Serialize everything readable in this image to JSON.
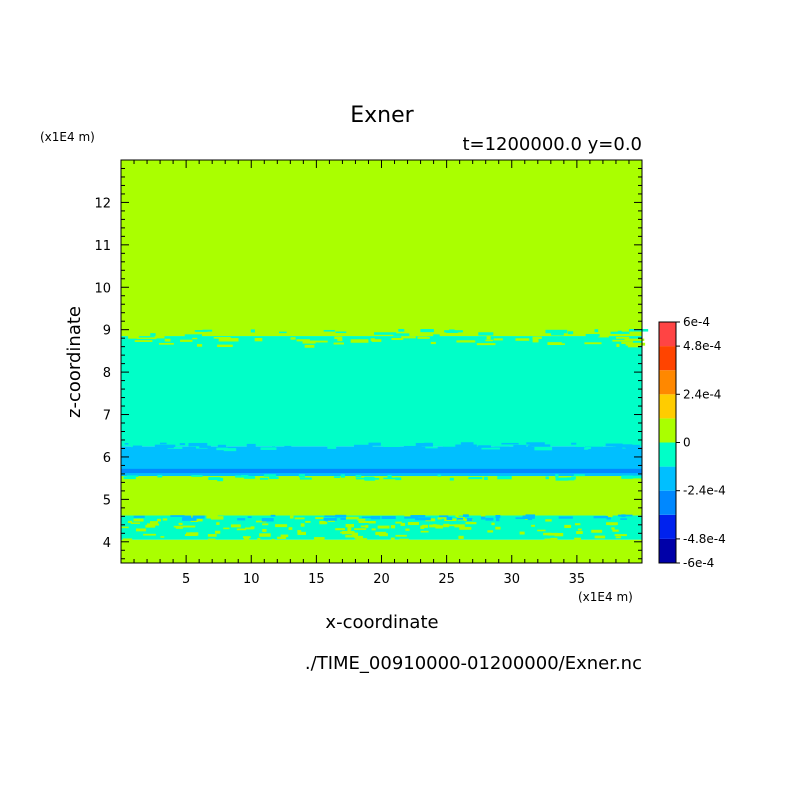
{
  "chart_data": {
    "type": "heatmap",
    "title": "Exner",
    "subtitle": "t=1200000.0 y=0.0",
    "xlabel": "x-coordinate",
    "ylabel": "z-coordinate",
    "x_unit": "(x1E4 m)",
    "y_unit": "(x1E4 m)",
    "source_file": "./TIME_00910000-01200000/Exner.nc",
    "xlim": [
      0,
      40
    ],
    "ylim": [
      3.5,
      13
    ],
    "x_ticks": [
      5,
      10,
      15,
      20,
      25,
      30,
      35
    ],
    "y_ticks": [
      4,
      5,
      6,
      7,
      8,
      9,
      10,
      11,
      12
    ],
    "colorbar": {
      "range": [
        -0.0006,
        0.0006
      ],
      "tick_values": [
        0.0006,
        0.00048,
        0.00024,
        0,
        -0.00024,
        -0.00048,
        -0.0006
      ],
      "tick_labels": [
        "6e-4",
        "4.8e-4",
        "2.4e-4",
        "0",
        "-2.4e-4",
        "-4.8e-4",
        "-6e-4"
      ],
      "levels": [
        {
          "lo": -0.0006,
          "hi": -0.00048,
          "color": "#0000a8"
        },
        {
          "lo": -0.00048,
          "hi": -0.00036,
          "color": "#0022ee"
        },
        {
          "lo": -0.00036,
          "hi": -0.00024,
          "color": "#0088ff"
        },
        {
          "lo": -0.00024,
          "hi": -0.00012,
          "color": "#00bfff"
        },
        {
          "lo": -0.00012,
          "hi": 0,
          "color": "#00ffc8"
        },
        {
          "lo": 0,
          "hi": 0.00012,
          "color": "#aaff00"
        },
        {
          "lo": 0.00012,
          "hi": 0.00024,
          "color": "#ffcc00"
        },
        {
          "lo": 0.00024,
          "hi": 0.00036,
          "color": "#ff8800"
        },
        {
          "lo": 0.00036,
          "hi": 0.00048,
          "color": "#ff4400"
        },
        {
          "lo": 0.00048,
          "hi": 0.0006,
          "color": "#ff4444"
        }
      ]
    },
    "bands": [
      {
        "z0": 3.5,
        "z1": 4.05,
        "color": "#aaff00"
      },
      {
        "z0": 4.05,
        "z1": 4.62,
        "color": "#00ffc8"
      },
      {
        "z0": 4.62,
        "z1": 5.55,
        "color": "#aaff00"
      },
      {
        "z0": 5.55,
        "z1": 6.25,
        "color": "#00bfff"
      },
      {
        "z0": 5.62,
        "z1": 5.72,
        "color": "#0088ff"
      },
      {
        "z0": 6.25,
        "z1": 8.85,
        "color": "#00ffc8"
      },
      {
        "z0": 8.85,
        "z1": 13,
        "color": "#aaff00"
      }
    ]
  }
}
